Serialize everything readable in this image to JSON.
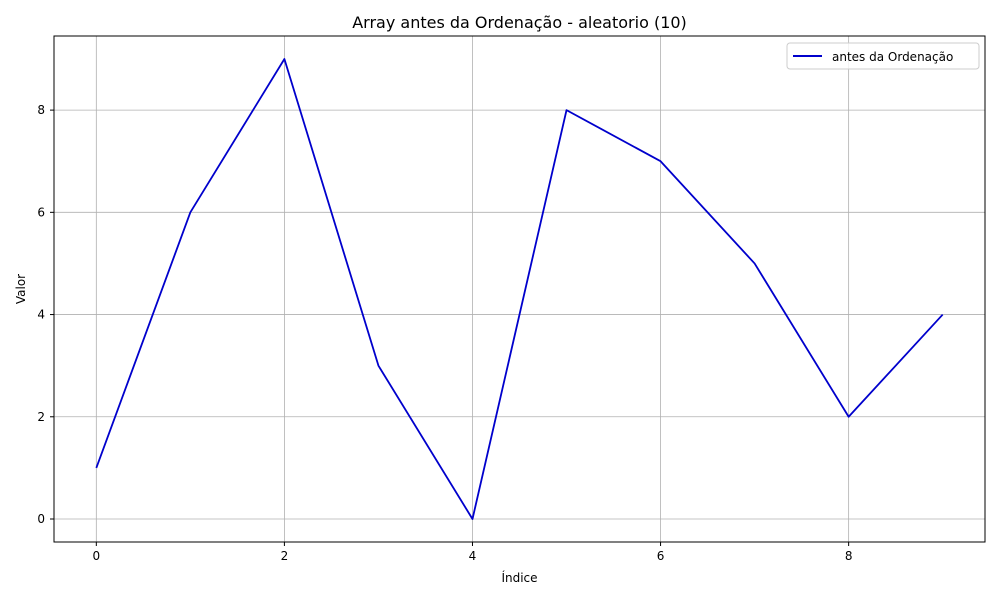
{
  "chart_data": {
    "type": "line",
    "title": "Array antes da Ordenação - aleatorio (10)",
    "xlabel": "Índice",
    "ylabel": "Valor",
    "x": [
      0,
      1,
      2,
      3,
      4,
      5,
      6,
      7,
      8,
      9
    ],
    "series": [
      {
        "name": "antes da Ordenação",
        "values": [
          1,
          6,
          9,
          3,
          0,
          8,
          7,
          5,
          2,
          4
        ],
        "color": "#0000cc"
      }
    ],
    "xlim": [
      -0.45,
      9.45
    ],
    "ylim": [
      -0.45,
      9.45
    ],
    "xticks": [
      0,
      2,
      4,
      6,
      8
    ],
    "yticks": [
      0,
      2,
      4,
      6,
      8
    ],
    "grid": true,
    "legend_position": "top-right"
  }
}
